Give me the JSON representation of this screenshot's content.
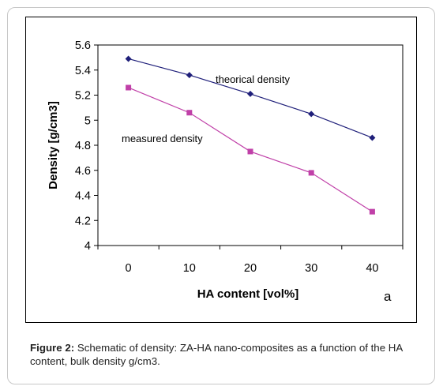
{
  "chart_data": {
    "type": "line",
    "title": "",
    "xlabel": "HA content [vol%]",
    "ylabel": "Density [g/cm3]",
    "panel_label": "a",
    "x": [
      0,
      10,
      20,
      30,
      40
    ],
    "x_tick_labels": [
      "0",
      "10",
      "20",
      "30",
      "40"
    ],
    "ylim": [
      4,
      5.6
    ],
    "y_ticks": [
      4,
      4.2,
      4.4,
      4.6,
      4.8,
      5,
      5.2,
      5.4,
      5.6
    ],
    "y_tick_labels": [
      "4",
      "4.2",
      "4.4",
      "4.6",
      "4.8",
      "5",
      "5.2",
      "5.4",
      "5.6"
    ],
    "grid": false,
    "series": [
      {
        "name": "theorical density",
        "values": [
          5.49,
          5.36,
          5.21,
          5.05,
          4.86
        ],
        "color": "#1f1f7a",
        "marker": "diamond"
      },
      {
        "name": "measured density",
        "values": [
          5.26,
          5.06,
          4.75,
          4.58,
          4.27
        ],
        "color": "#c040a8",
        "marker": "square"
      }
    ]
  },
  "caption": {
    "label": "Figure 2:",
    "text": " Schematic of density: ZA-HA nano-composites as a function of the HA content, bulk density g/cm3."
  }
}
